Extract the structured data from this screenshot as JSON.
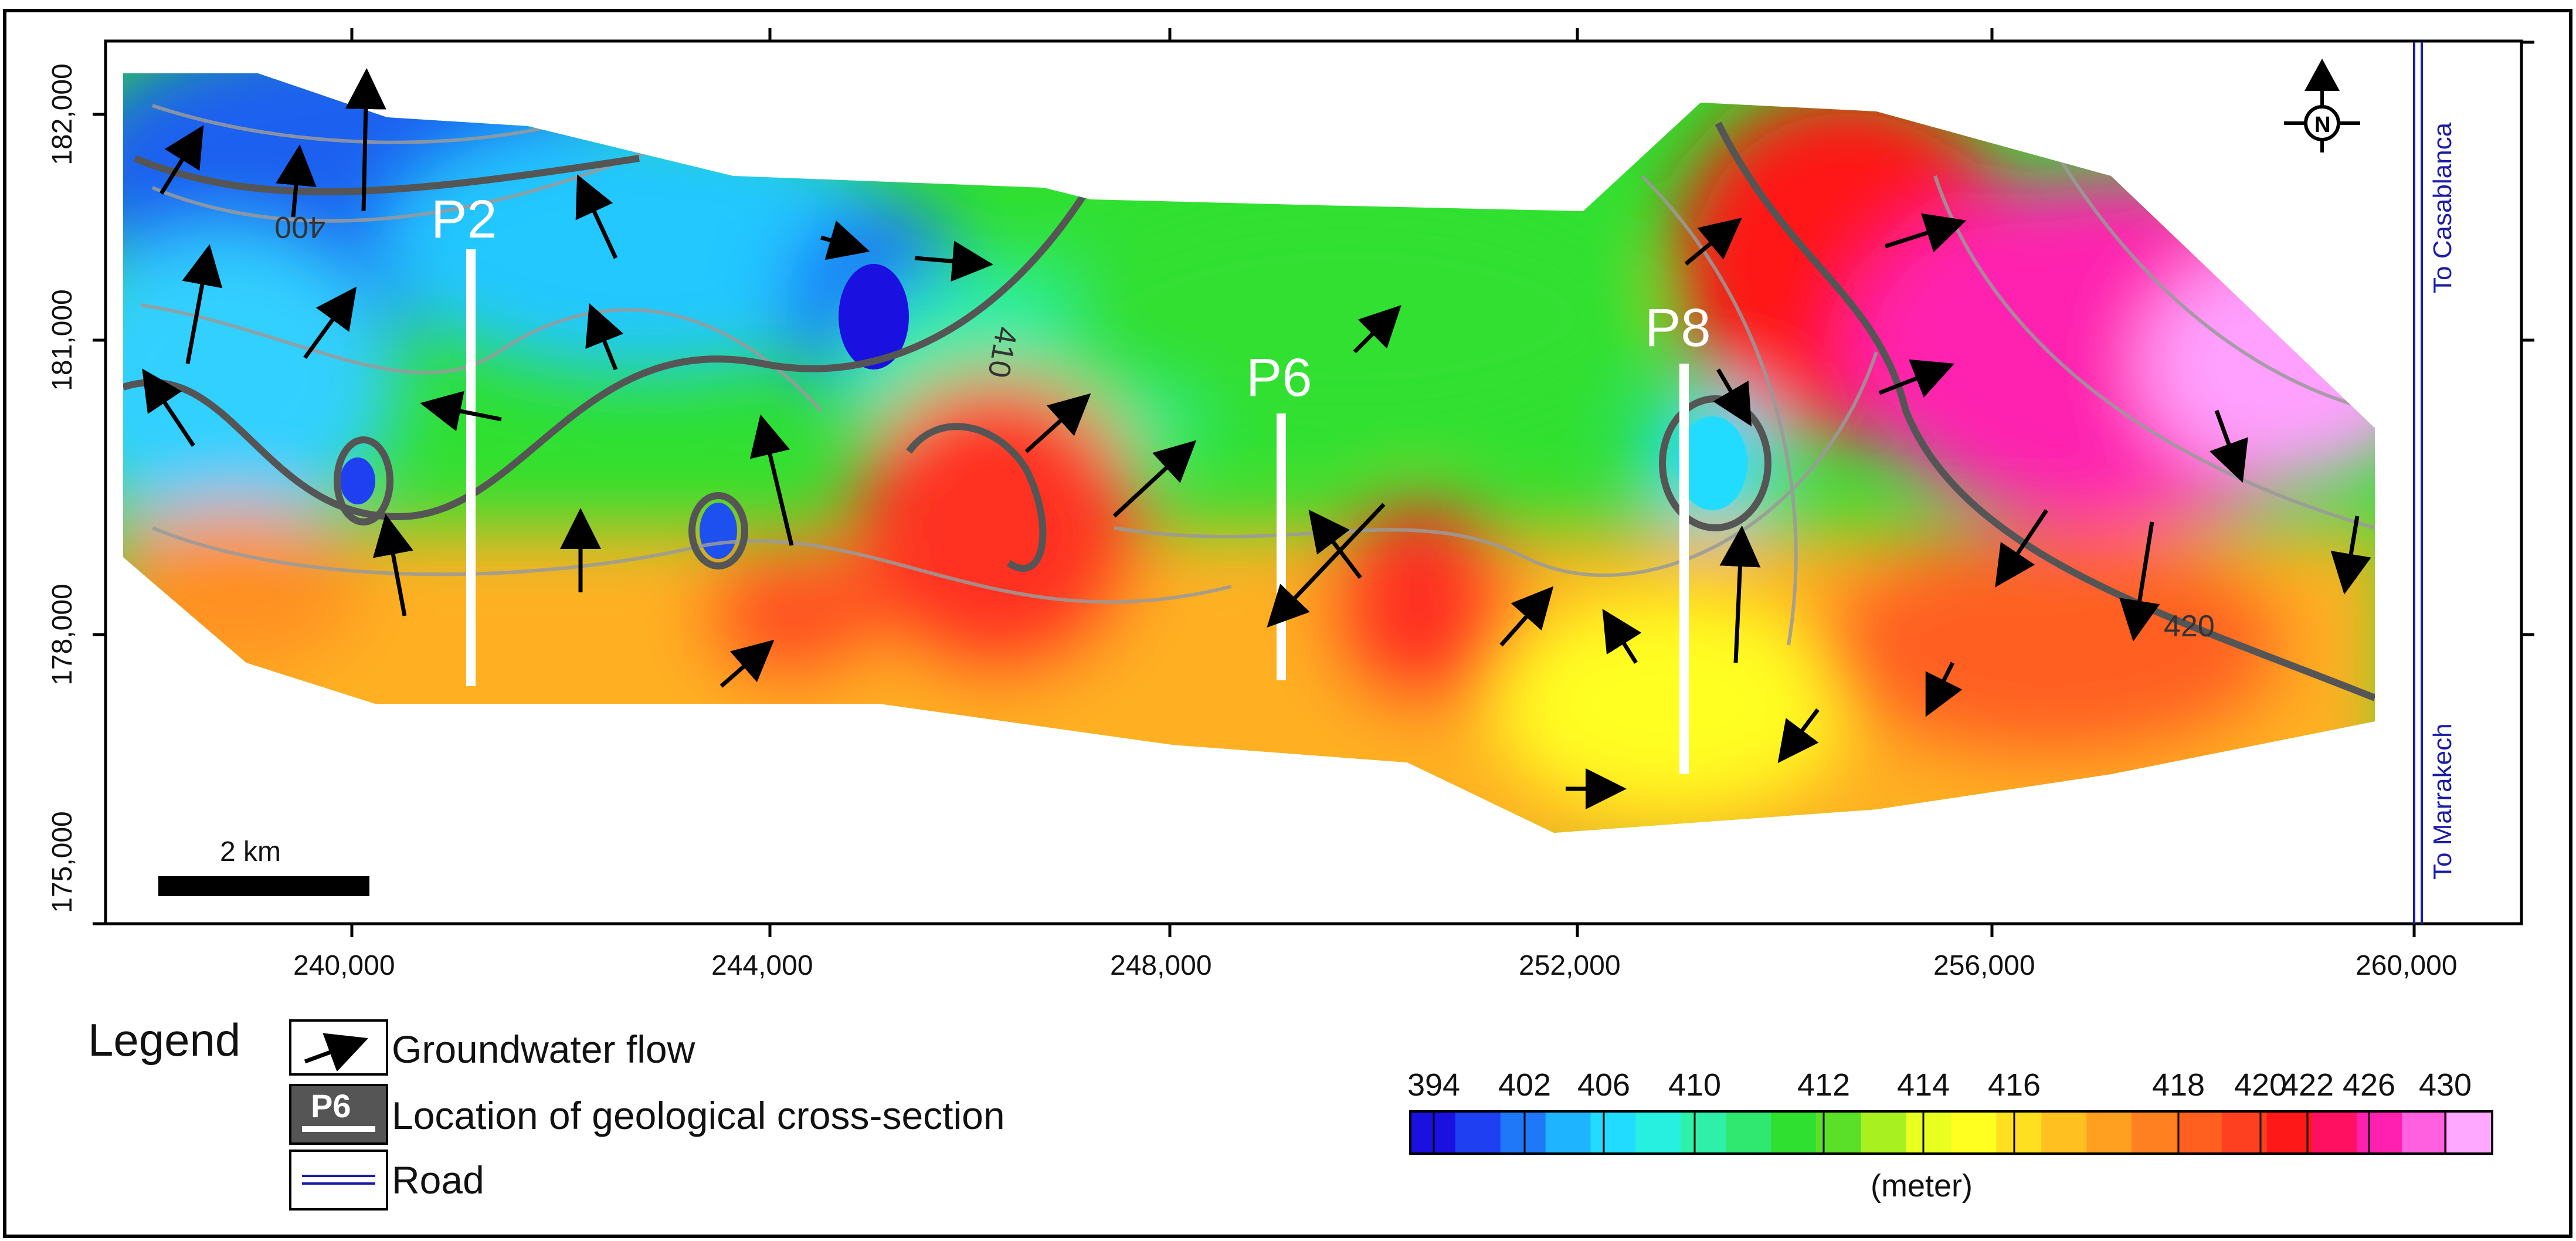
{
  "map": {
    "x_ticks": [
      "240,000",
      "244,000",
      "248,000",
      "252,000",
      "256,000",
      "260,000"
    ],
    "y_ticks": [
      "182,000",
      "181,000",
      "178,000",
      "175,000"
    ],
    "sections": [
      "P2",
      "P6",
      "P8"
    ],
    "contour_labels": [
      "400",
      "410",
      "420"
    ],
    "roads": {
      "north": "To Casablanca",
      "south": "To Marrakech"
    },
    "north_symbol": "N",
    "scale_bar": "2 km"
  },
  "legend": {
    "title": "Legend",
    "flow": "Groundwater flow",
    "section": "Location of geological cross-section",
    "section_sample": "P6",
    "road": "Road"
  },
  "colorbar": {
    "ticks": [
      "394",
      "402",
      "406",
      "410",
      "412",
      "414",
      "416",
      "418",
      "420",
      "422",
      "426",
      "430"
    ],
    "unit": "(meter)",
    "colors": [
      "#1a10e0",
      "#1e40f0",
      "#1e78f8",
      "#1eb4ff",
      "#22dcff",
      "#28f0e0",
      "#2ef0a8",
      "#30e870",
      "#30e030",
      "#5ae028",
      "#a8f020",
      "#e8ff20",
      "#ffff20",
      "#ffe020",
      "#ffc020",
      "#ffa020",
      "#ff8020",
      "#ff6020",
      "#ff4020",
      "#ff1818",
      "#ff1060",
      "#ff20b0",
      "#ff60e0",
      "#ffa8ff"
    ]
  }
}
